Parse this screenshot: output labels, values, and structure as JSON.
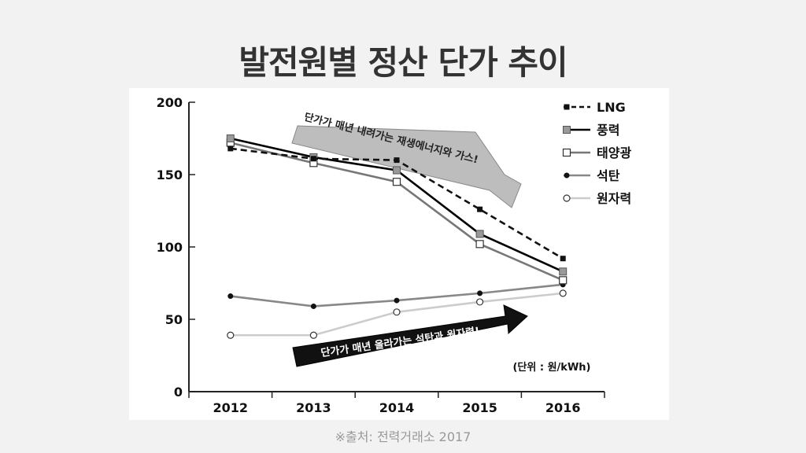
{
  "page": {
    "title": "발전원별 정산 단가 추이",
    "source": "※출처: 전력거래소 2017"
  },
  "chart_data": {
    "type": "line",
    "x": [
      "2012",
      "2013",
      "2014",
      "2015",
      "2016"
    ],
    "series": [
      {
        "name": "LNG",
        "values": [
          168,
          161,
          160,
          126,
          92
        ],
        "color": "#111111",
        "dash": "dashed",
        "marker": "square-filled-black"
      },
      {
        "name": "풍력",
        "values": [
          175,
          162,
          153,
          109,
          83
        ],
        "color": "#000000",
        "dash": "solid",
        "marker": "square-gray"
      },
      {
        "name": "태양광",
        "values": [
          172,
          158,
          145,
          102,
          77
        ],
        "color": "#777777",
        "dash": "solid",
        "marker": "square-open"
      },
      {
        "name": "석탄",
        "values": [
          66,
          59,
          63,
          68,
          74
        ],
        "color": "#888888",
        "dash": "solid",
        "marker": "circle-filled-black"
      },
      {
        "name": "원자력",
        "values": [
          39,
          39,
          55,
          62,
          68
        ],
        "color": "#cccccc",
        "dash": "solid",
        "marker": "circle-open"
      }
    ],
    "ylim": [
      0,
      200
    ],
    "yticks": [
      "0",
      "50",
      "100",
      "150",
      "200"
    ],
    "unit_note": "(단위 : 원/kWh)",
    "annotations": [
      {
        "text": "단가가 매년 내려가는 재생에너지와 가스!",
        "style": "gray-arrow"
      },
      {
        "text": "단가가 매년 올라가는 석탄과 원자력!",
        "style": "black-arrow"
      }
    ],
    "legend_position": "top-right",
    "grid": false
  }
}
